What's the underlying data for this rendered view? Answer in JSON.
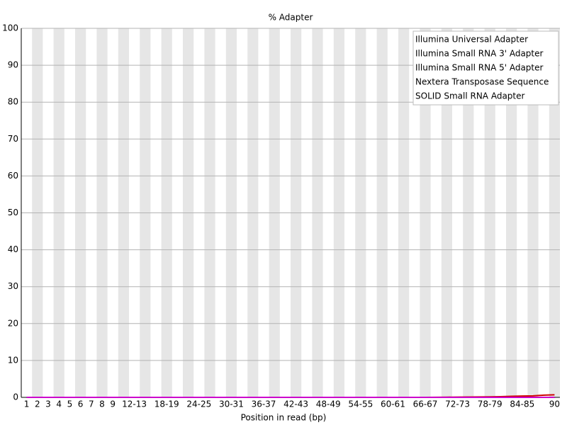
{
  "chart_data": {
    "type": "line",
    "title": "% Adapter",
    "xlabel": "Position in read (bp)",
    "categories": [
      "1",
      "2",
      "3",
      "4",
      "5",
      "6",
      "7",
      "8",
      "9",
      null,
      "12-13",
      null,
      null,
      "18-19",
      null,
      null,
      "24-25",
      null,
      null,
      "30-31",
      null,
      null,
      "36-37",
      null,
      null,
      "42-43",
      null,
      null,
      "48-49",
      null,
      null,
      "54-55",
      null,
      null,
      "60-61",
      null,
      null,
      "66-67",
      null,
      null,
      "72-73",
      null,
      null,
      "78-79",
      null,
      null,
      "84-85",
      null,
      null,
      "90"
    ],
    "ylim": [
      0,
      100
    ],
    "yticks": [
      0,
      10,
      20,
      30,
      40,
      50,
      60,
      70,
      80,
      90,
      100
    ],
    "grid": true,
    "legend": "top-right",
    "series": [
      {
        "name": "Illumina Universal Adapter",
        "color": "#cc0000",
        "values": [
          0,
          0,
          0,
          0,
          0,
          0,
          0,
          0,
          0,
          0,
          0,
          0,
          0,
          0,
          0,
          0,
          0,
          0,
          0,
          0,
          0,
          0,
          0,
          0,
          0,
          0,
          0,
          0,
          0,
          0,
          0,
          0,
          0,
          0,
          0,
          0,
          0,
          0,
          0.02,
          0.05,
          0.08,
          0.1,
          0.12,
          0.15,
          0.2,
          0.3,
          0.35,
          0.4,
          0.6,
          0.7
        ]
      },
      {
        "name": "Illumina Small RNA 3' Adapter",
        "color": "#000099",
        "values": [
          0,
          0,
          0,
          0,
          0,
          0,
          0,
          0,
          0,
          0,
          0,
          0,
          0,
          0,
          0,
          0,
          0,
          0,
          0,
          0,
          0,
          0,
          0,
          0,
          0,
          0,
          0,
          0,
          0,
          0,
          0,
          0,
          0,
          0,
          0,
          0,
          0,
          0,
          0,
          0,
          0,
          0,
          0,
          0,
          0,
          0,
          0,
          0,
          0,
          0
        ]
      },
      {
        "name": "Illumina Small RNA 5' Adapter",
        "color": "#00bb00",
        "values": [
          0,
          0,
          0,
          0,
          0,
          0,
          0,
          0,
          0,
          0,
          0,
          0,
          0,
          0,
          0,
          0,
          0,
          0,
          0,
          0,
          0,
          0,
          0,
          0,
          0,
          0,
          0,
          0,
          0,
          0,
          0,
          0,
          0,
          0,
          0,
          0,
          0,
          0,
          0,
          0,
          0,
          0,
          0,
          0,
          0,
          0,
          0,
          0,
          0,
          0
        ]
      },
      {
        "name": "Nextera Transposase Sequence",
        "color": "#444444",
        "values": [
          0,
          0,
          0,
          0,
          0,
          0,
          0,
          0,
          0,
          0,
          0,
          0,
          0,
          0,
          0,
          0,
          0,
          0,
          0,
          0,
          0,
          0,
          0,
          0,
          0,
          0,
          0,
          0,
          0,
          0,
          0,
          0,
          0,
          0,
          0,
          0,
          0,
          0,
          0,
          0,
          0,
          0,
          0,
          0,
          0,
          0,
          0,
          0,
          0,
          0
        ]
      },
      {
        "name": "SOLID Small RNA Adapter",
        "color": "#cc00cc",
        "values": [
          0,
          0,
          0,
          0,
          0,
          0,
          0,
          0,
          0,
          0,
          0,
          0,
          0,
          0,
          0,
          0,
          0,
          0,
          0,
          0,
          0,
          0,
          0,
          0,
          0,
          0,
          0,
          0,
          0,
          0,
          0,
          0,
          0,
          0,
          0,
          0,
          0,
          0,
          0,
          0,
          0,
          0,
          0,
          0,
          0,
          0,
          0,
          0,
          0,
          0
        ]
      }
    ]
  }
}
